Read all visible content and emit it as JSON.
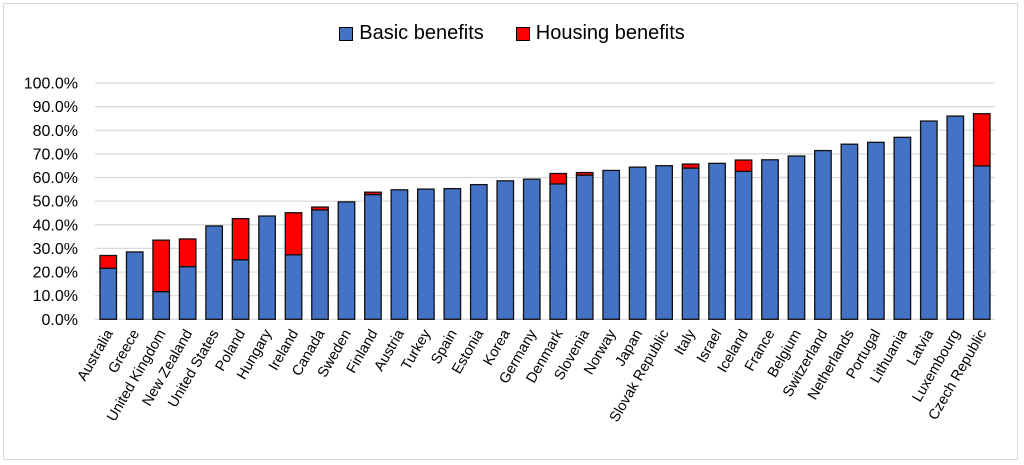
{
  "chart_data": {
    "type": "bar",
    "stacked": true,
    "title": "",
    "xlabel": "",
    "ylabel": "",
    "ylim": [
      0,
      100
    ],
    "yticks": [
      0,
      10,
      20,
      30,
      40,
      50,
      60,
      70,
      80,
      90,
      100
    ],
    "ytick_labels": [
      "0.0%",
      "10.0%",
      "20.0%",
      "30.0%",
      "40.0%",
      "50.0%",
      "60.0%",
      "70.0%",
      "80.0%",
      "90.0%",
      "100.0%"
    ],
    "grid": "horizontal",
    "legend_position": "top-center",
    "categories": [
      "Australia",
      "Greece",
      "United Kingdom",
      "New Zealand",
      "United States",
      "Poland",
      "Hungary",
      "Ireland",
      "Canada",
      "Sweden",
      "Finland",
      "Austria",
      "Turkey",
      "Spain",
      "Estonia",
      "Korea",
      "Germany",
      "Denmark",
      "Slovenia",
      "Norway",
      "Japan",
      "Slovak Republic",
      "Italy",
      "Israel",
      "Iceland",
      "France",
      "Belgium",
      "Switzerland",
      "Netherlands",
      "Portugal",
      "Lithuania",
      "Latvia",
      "Luxembourg",
      "Czech Republic"
    ],
    "series": [
      {
        "name": "Basic benefits",
        "color": "#4472C4",
        "values": [
          21.6,
          28.5,
          11.7,
          22.3,
          39.5,
          25.2,
          43.7,
          27.3,
          46.3,
          49.7,
          52.8,
          54.8,
          55.1,
          55.3,
          57.0,
          58.6,
          59.3,
          57.3,
          61.0,
          63.0,
          64.4,
          65.0,
          64.0,
          66.0,
          62.6,
          67.5,
          69.1,
          71.4,
          74.1,
          74.9,
          77.0,
          83.9,
          86.0,
          64.9
        ]
      },
      {
        "name": "Housing benefits",
        "color": "#FF0000",
        "values": [
          5.4,
          0,
          21.8,
          11.7,
          0,
          17.4,
          0,
          17.8,
          1.2,
          0,
          1.0,
          0,
          0,
          0,
          0,
          0,
          0,
          4.4,
          1.1,
          0,
          0,
          0,
          1.7,
          0,
          4.8,
          0,
          0,
          0,
          0,
          0,
          0,
          0,
          0,
          22.1
        ]
      }
    ]
  },
  "legend": {
    "items": [
      {
        "label": "Basic benefits",
        "color": "#4472C4"
      },
      {
        "label": "Housing benefits",
        "color": "#FF0000"
      }
    ]
  }
}
